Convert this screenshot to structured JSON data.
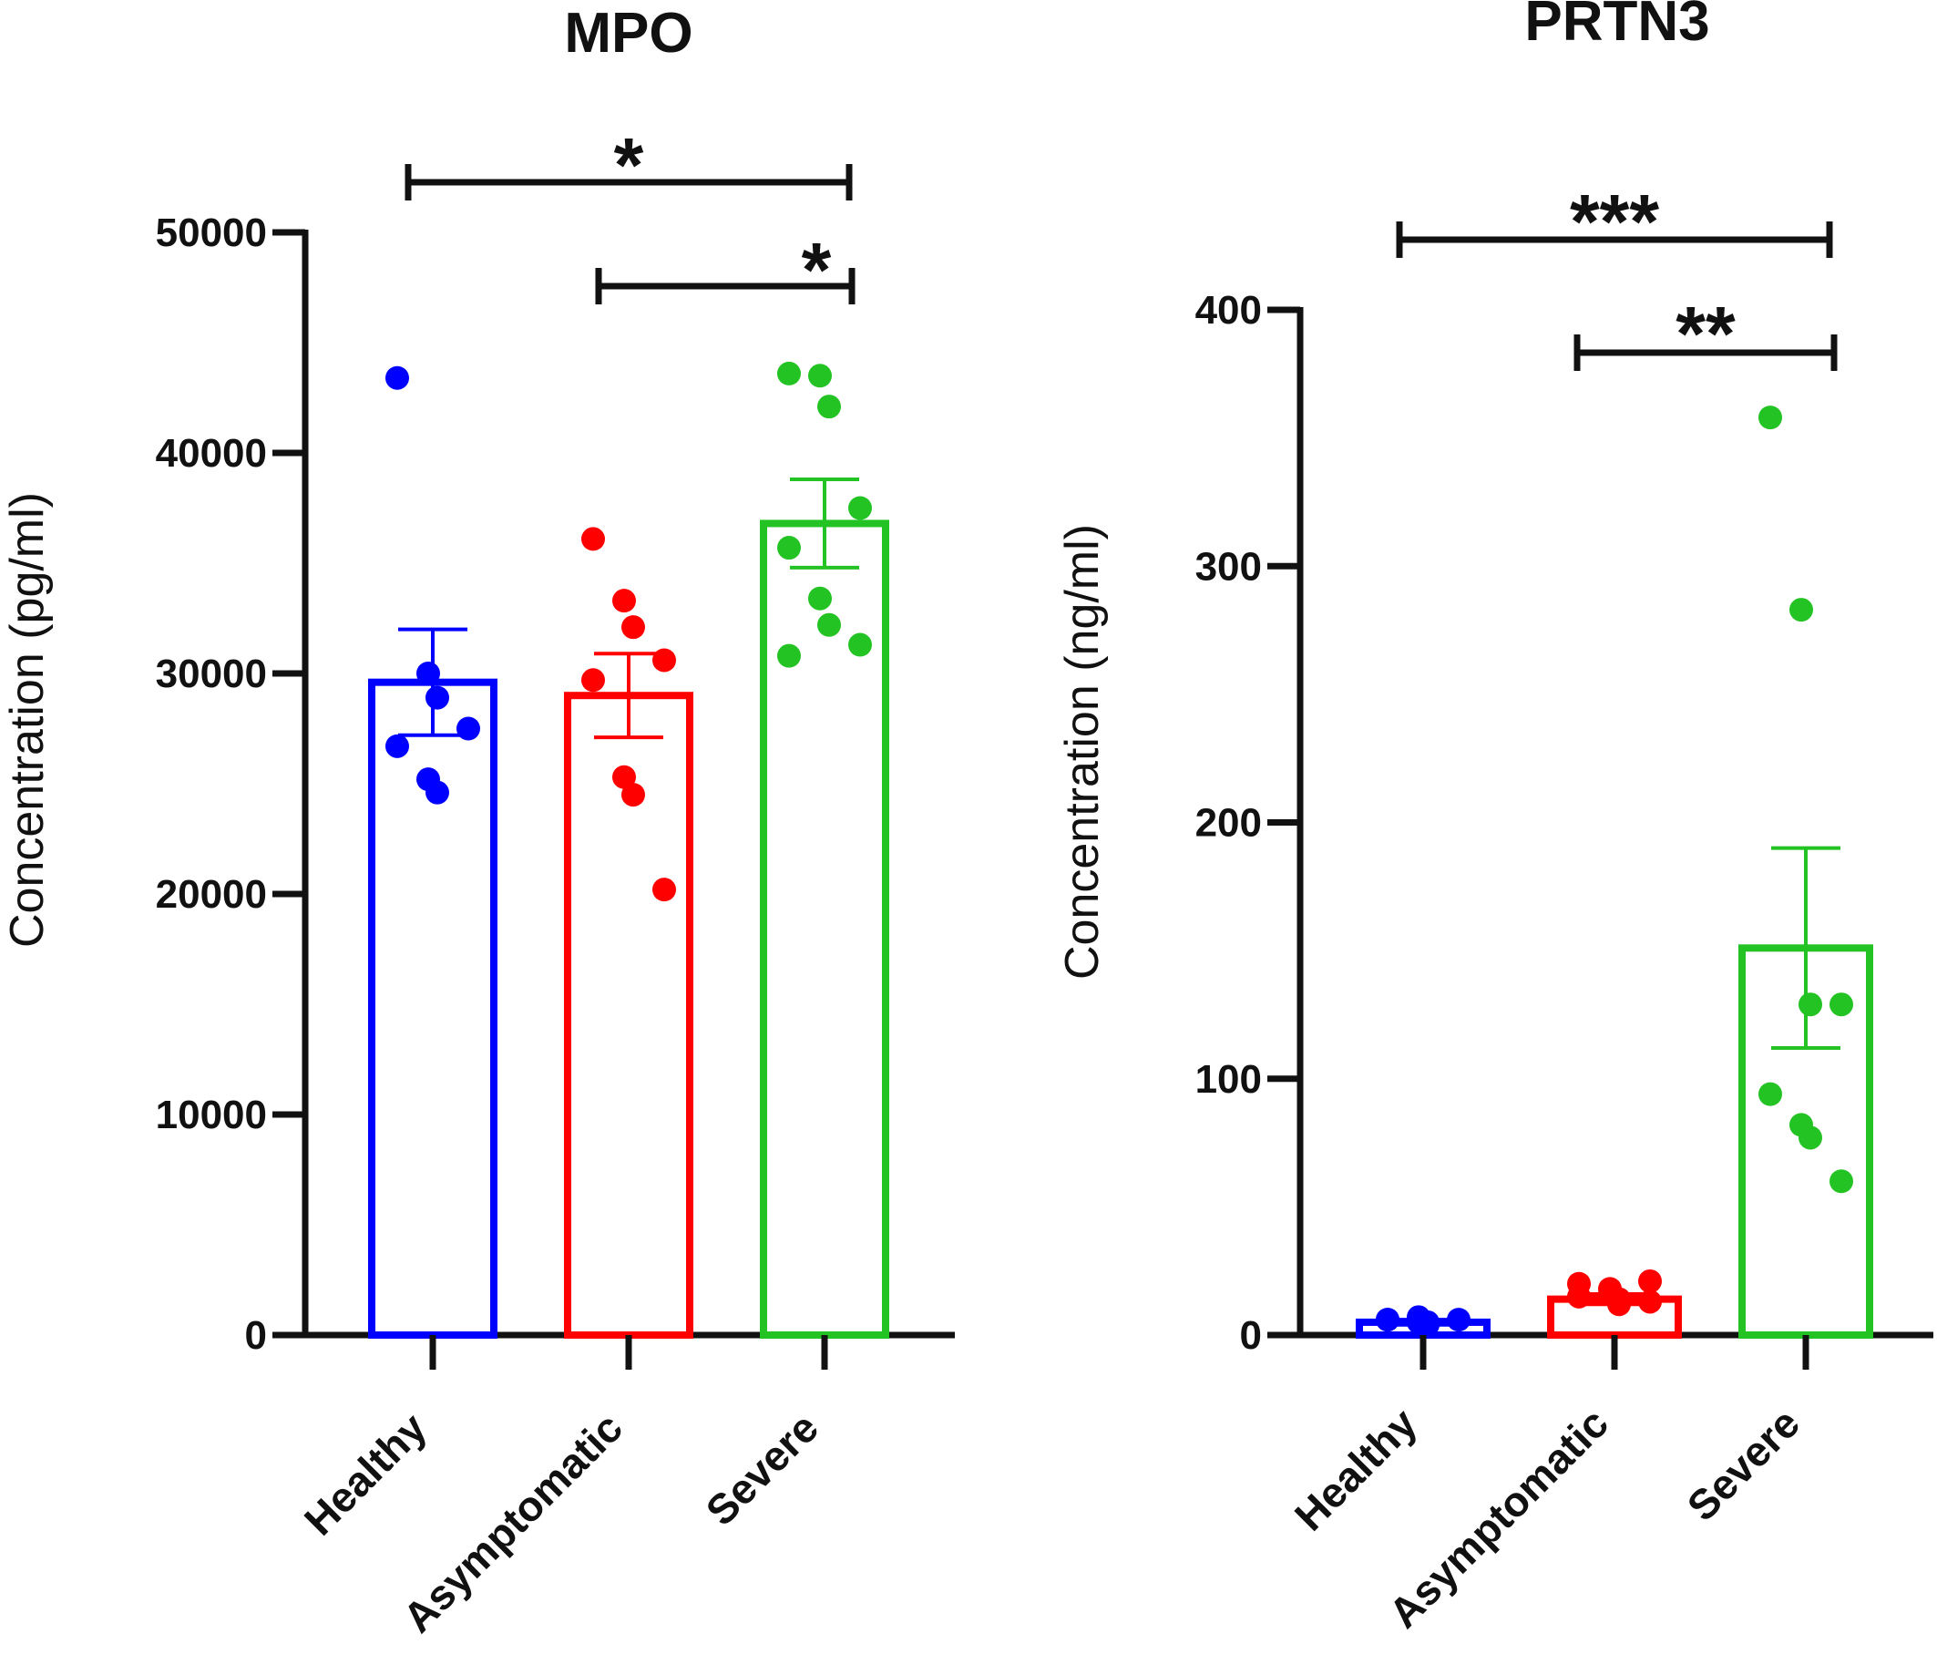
{
  "chart_data": [
    {
      "type": "bar",
      "title": "MPO",
      "xlabel": "",
      "ylabel": "Concentration (pg/ml)",
      "ylim": [
        0,
        50000
      ],
      "yticks": [
        0,
        10000,
        20000,
        30000,
        40000,
        50000
      ],
      "yticklabels": [
        "0",
        "10000",
        "20000",
        "30000",
        "40000",
        "50000"
      ],
      "categories": [
        "Healthy",
        "Asymptomatic",
        "Severe"
      ],
      "values": [
        29600,
        29000,
        36800
      ],
      "errors": [
        2400,
        1900,
        2000
      ],
      "colors": [
        "#0000ff",
        "#ff0000",
        "#22c322"
      ],
      "points": [
        [
          43400,
          30000,
          28900,
          27500,
          26700,
          25200,
          24600
        ],
        [
          36100,
          33300,
          32100,
          30600,
          29700,
          25300,
          24500,
          20200
        ],
        [
          43600,
          43500,
          42100,
          37500,
          35700,
          33400,
          32200,
          31300,
          30800
        ]
      ],
      "significance": [
        {
          "from": 0,
          "to": 2,
          "label": "*"
        },
        {
          "from": 1,
          "to": 2,
          "label": "*"
        }
      ]
    },
    {
      "type": "bar",
      "title": "PRTN3",
      "xlabel": "",
      "ylabel": "Concentration (ng/ml)",
      "ylim": [
        0,
        400
      ],
      "yticks": [
        0,
        100,
        200,
        300,
        400
      ],
      "yticklabels": [
        "0",
        "100",
        "200",
        "300",
        "400"
      ],
      "categories": [
        "Healthy",
        "Asymptomatic",
        "Severe"
      ],
      "values": [
        5,
        14,
        151
      ],
      "errors": [
        1,
        2,
        39
      ],
      "colors": [
        "#0000ff",
        "#ff0000",
        "#22c322"
      ],
      "points": [
        [
          6,
          7,
          5,
          6,
          6,
          5,
          4
        ],
        [
          20,
          18,
          14,
          21,
          15,
          16,
          12,
          13
        ],
        [
          358,
          283,
          129,
          129,
          94,
          82,
          77,
          60
        ]
      ],
      "significance": [
        {
          "from": 0,
          "to": 2,
          "label": "***"
        },
        {
          "from": 1,
          "to": 2,
          "label": "**"
        }
      ]
    }
  ]
}
